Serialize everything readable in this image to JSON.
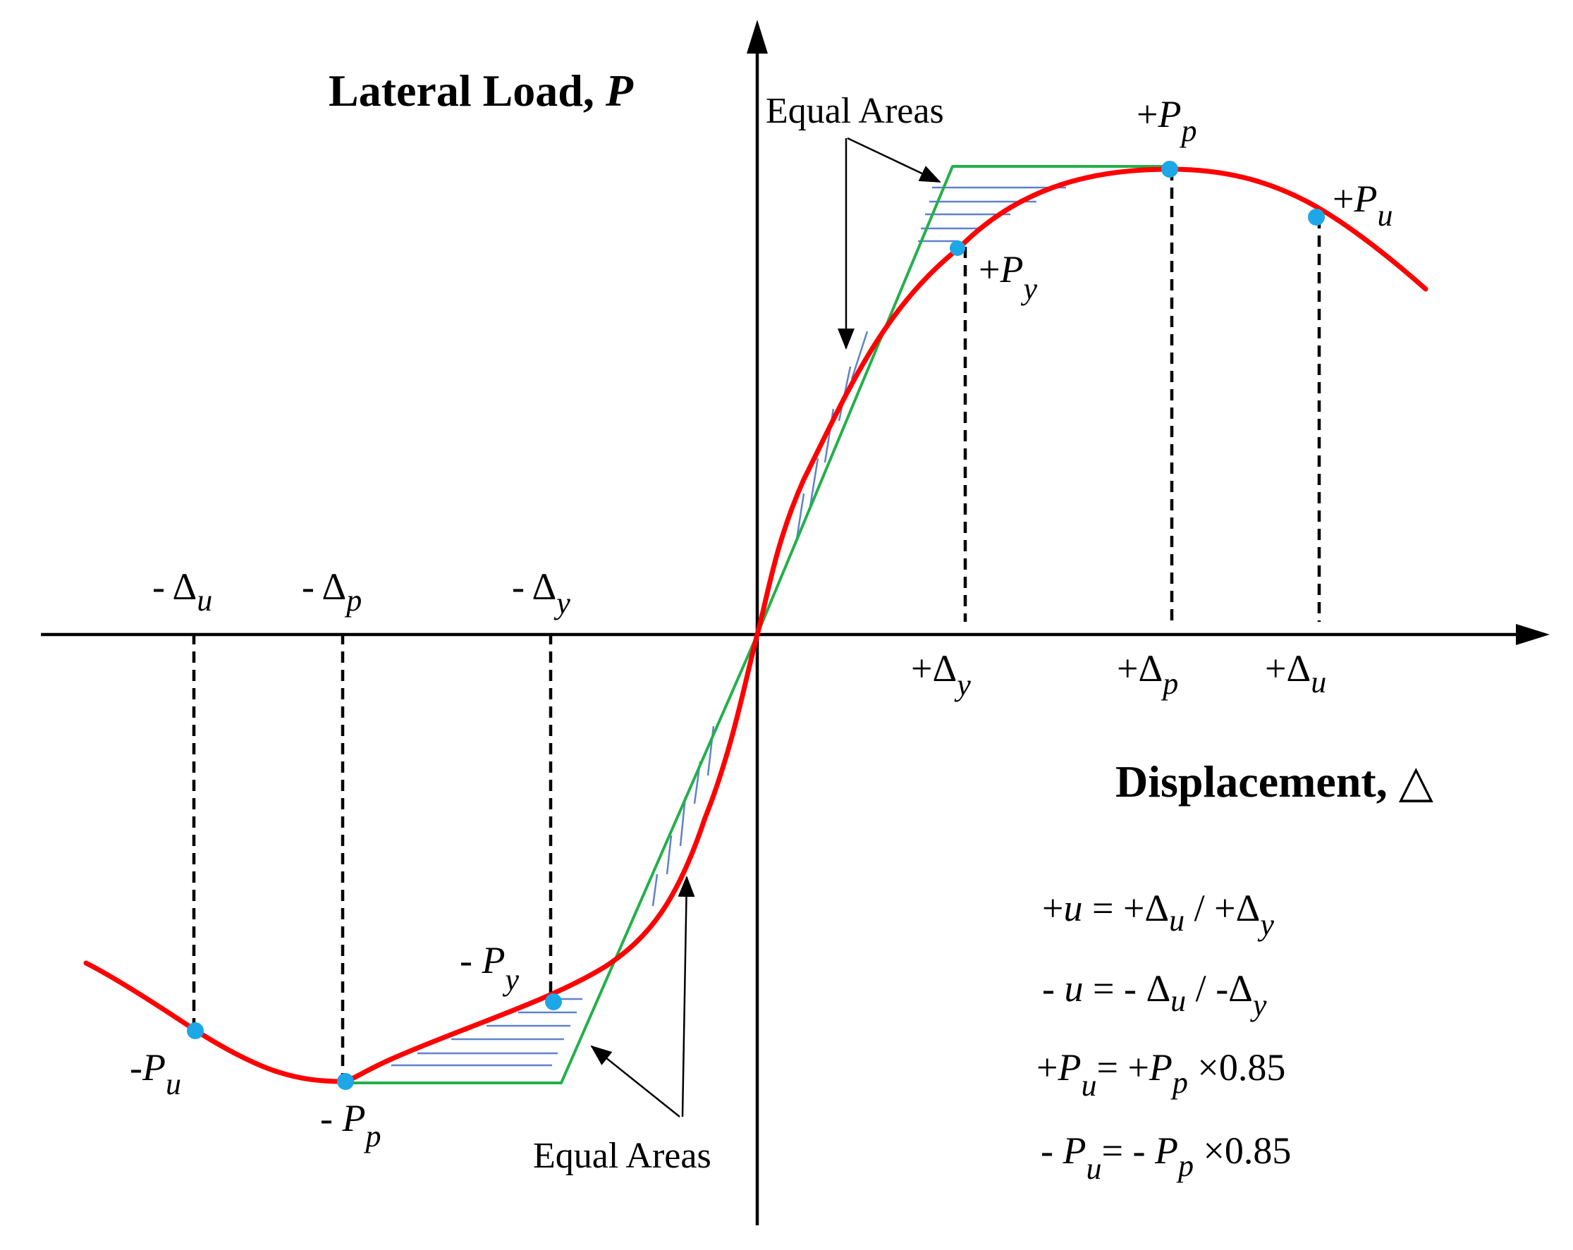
{
  "axes": {
    "y_label": "Lateral Load, ",
    "y_label_var": "P",
    "x_label": "Displacement, ",
    "x_label_sym": "△"
  },
  "points": {
    "pos_py": {
      "sign": "+",
      "base": "P",
      "sub": "y"
    },
    "pos_pp": {
      "sign": "+",
      "base": "P",
      "sub": "p"
    },
    "pos_pu": {
      "sign": "+",
      "base": "P",
      "sub": "u"
    },
    "neg_py": {
      "sign": "- ",
      "base": "P",
      "sub": "y"
    },
    "neg_pp": {
      "sign": "- ",
      "base": "P",
      "sub": "p"
    },
    "neg_pu": {
      "sign": "-",
      "base": "P",
      "sub": "u"
    }
  },
  "displacements": {
    "pos_dy": {
      "sign": "+",
      "base": "Δ",
      "sub": "y"
    },
    "pos_dp": {
      "sign": "+",
      "base": "Δ",
      "sub": "p"
    },
    "pos_du": {
      "sign": "+",
      "base": "Δ",
      "sub": "u"
    },
    "neg_dy": {
      "sign": "- ",
      "base": "Δ",
      "sub": "y"
    },
    "neg_dp": {
      "sign": "- ",
      "base": "Δ",
      "sub": "p"
    },
    "neg_du": {
      "sign": "- ",
      "base": "Δ",
      "sub": "u"
    }
  },
  "annotations": {
    "equal_areas_top": "Equal Areas",
    "equal_areas_bottom": "Equal Areas"
  },
  "equations": {
    "eq1": {
      "lhs_sign": "+",
      "lhs": "u",
      "eq": " = ",
      "a_sign": "+",
      "a": "Δ",
      "a_sub": "u",
      "div": " / ",
      "b_sign": "+",
      "b": "Δ",
      "b_sub": "y"
    },
    "eq2": {
      "lhs_sign": "- ",
      "lhs": "u",
      "eq": " = ",
      "a_sign": "- ",
      "a": "Δ",
      "a_sub": "u",
      "div": " /  ",
      "b_sign": "-",
      "b": "Δ",
      "b_sub": "y"
    },
    "eq3": {
      "lhs_sign": "+",
      "lhs": "P",
      "lhs_sub": "u",
      "eq": "= ",
      "r_sign": "+",
      "r": "P",
      "r_sub": "p",
      "mult": " ×0.85"
    },
    "eq4": {
      "lhs_sign": "- ",
      "lhs": "P",
      "lhs_sub": "u",
      "eq": "=  ",
      "r_sign": "- ",
      "r": "P",
      "r_sub": "p",
      "mult": " ×0.85"
    }
  },
  "colors": {
    "curve": "#ff0000",
    "bilinear": "#22b04a",
    "hatch": "#4f74c9",
    "points": "#1ea7e6",
    "axis": "#000000"
  }
}
